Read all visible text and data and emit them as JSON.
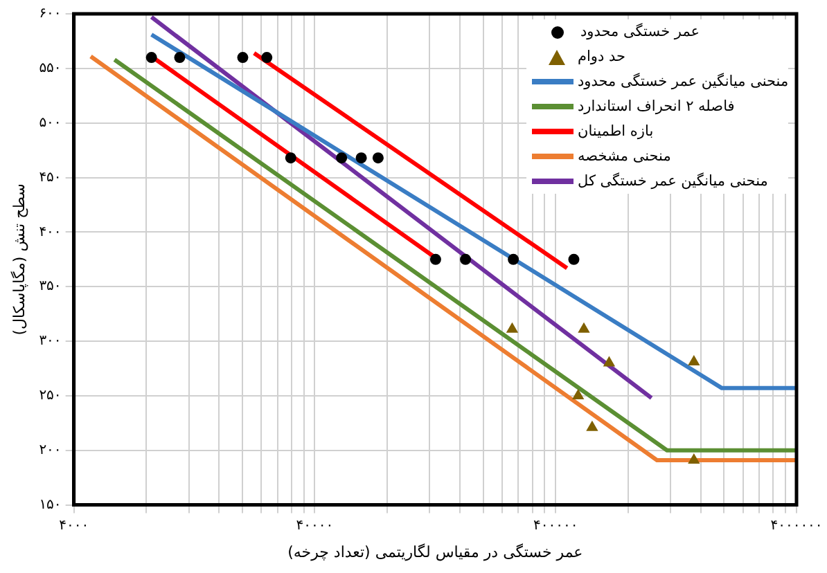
{
  "chart_data": {
    "type": "line",
    "xlabel": "عمر خستگی در مقیاس لگاریتمی (تعداد چرخه)",
    "ylabel": "سطح تنش (مگاپاسکال)",
    "log": "x",
    "grid": true,
    "legend": "top right",
    "xlim": [
      4000,
      4000000
    ],
    "ylim": [
      150,
      600
    ],
    "xticks": [
      {
        "value": 4000,
        "label": "۴۰۰۰"
      },
      {
        "value": 8000,
        "label": null
      },
      {
        "value": 12000,
        "label": null
      },
      {
        "value": 16000,
        "label": null
      },
      {
        "value": 20000,
        "label": null
      },
      {
        "value": 24000,
        "label": null
      },
      {
        "value": 28000,
        "label": null
      },
      {
        "value": 32000,
        "label": null
      },
      {
        "value": 36000,
        "label": null
      },
      {
        "value": 40000,
        "label": "۴۰۰۰۰"
      },
      {
        "value": 80000,
        "label": null
      },
      {
        "value": 120000,
        "label": null
      },
      {
        "value": 160000,
        "label": null
      },
      {
        "value": 200000,
        "label": null
      },
      {
        "value": 240000,
        "label": null
      },
      {
        "value": 280000,
        "label": null
      },
      {
        "value": 320000,
        "label": null
      },
      {
        "value": 360000,
        "label": null
      },
      {
        "value": 400000,
        "label": "۴۰۰۰۰۰"
      },
      {
        "value": 800000,
        "label": null
      },
      {
        "value": 1200000,
        "label": null
      },
      {
        "value": 1600000,
        "label": null
      },
      {
        "value": 2000000,
        "label": null
      },
      {
        "value": 2400000,
        "label": null
      },
      {
        "value": 2800000,
        "label": null
      },
      {
        "value": 3200000,
        "label": null
      },
      {
        "value": 3600000,
        "label": null
      },
      {
        "value": 4000000,
        "label": "۴۰۰۰۰۰۰"
      }
    ],
    "yticks": [
      {
        "value": 150,
        "label": "۱۵۰"
      },
      {
        "value": 200,
        "label": "۲۰۰"
      },
      {
        "value": 250,
        "label": "۲۵۰"
      },
      {
        "value": 300,
        "label": "۳۰۰"
      },
      {
        "value": 350,
        "label": "۳۵۰"
      },
      {
        "value": 400,
        "label": "۴۰۰"
      },
      {
        "value": 450,
        "label": "۴۵۰"
      },
      {
        "value": 500,
        "label": "۵۰۰"
      },
      {
        "value": 550,
        "label": "۵۵۰"
      },
      {
        "value": 600,
        "label": "۶۰۰"
      }
    ],
    "series": [
      {
        "name": "عمر خستگی محدود",
        "type": "scatter",
        "marker": "circle",
        "color": "#000000",
        "x": [
          8400,
          11000,
          20100,
          25300,
          31800,
          51700,
          62400,
          73300,
          127000,
          169000,
          267000,
          476000
        ],
        "values": [
          560,
          560,
          560,
          560,
          468,
          468,
          468,
          468,
          375,
          375,
          375,
          375
        ]
      },
      {
        "name": "حد دوام",
        "type": "scatter",
        "marker": "triangle",
        "color": "#7f6000",
        "x": [
          264000,
          524000,
          667000,
          496000,
          567000,
          1500000,
          1500000
        ],
        "values": [
          311,
          311,
          280,
          250,
          221,
          281,
          191
        ]
      },
      {
        "name": "منحنی میانگین عمر خستگی محدود",
        "type": "line",
        "marker": "none",
        "color": "#3a7dc4",
        "x": [
          8400,
          1960000,
          4000000
        ],
        "values": [
          581,
          257,
          257
        ]
      },
      {
        "name": "فاصله ۲ انحراف استاندارد",
        "type": "line",
        "marker": "none",
        "color": "#5b8f33",
        "x": [
          5900,
          1160000,
          4000000
        ],
        "values": [
          558,
          200,
          200
        ]
      },
      {
        "name": "بازه اطمینان",
        "type": "line",
        "marker": "none",
        "color": "#ff0000",
        "x": [
          8400,
          124000
        ],
        "values": [
          561,
          378
        ]
      },
      {
        "type": "line",
        "marker": "none",
        "color": "#ff0000",
        "x": [
          22400,
          446000
        ],
        "values": [
          564,
          367
        ]
      },
      {
        "name": "منحنی مشخصه",
        "type": "line",
        "marker": "none",
        "color": "#ed7d31",
        "x": [
          4700,
          1054000,
          4000000
        ],
        "values": [
          561,
          191,
          191
        ]
      },
      {
        "name": "منحنی میانگین عمر خستگی کل",
        "type": "line",
        "marker": "none",
        "color": "#7030a0",
        "x": [
          8400,
          1000000
        ],
        "values": [
          597,
          248
        ]
      }
    ]
  }
}
